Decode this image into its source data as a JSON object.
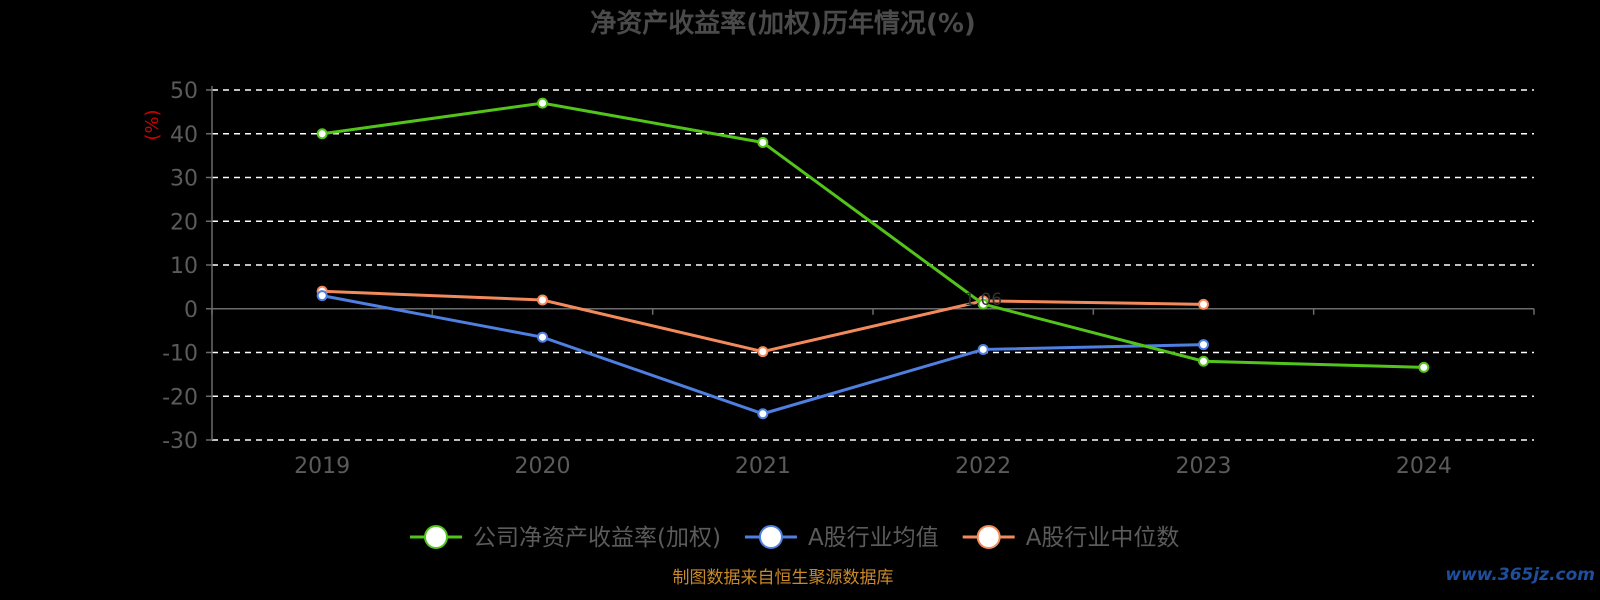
{
  "chart_data": {
    "type": "line",
    "title": "净资产收益率(加权)历年情况(%)",
    "ylabel": "(%)",
    "xlabel": "",
    "categories": [
      "2019",
      "2020",
      "2021",
      "2022",
      "2023",
      "2024"
    ],
    "ylim": [
      -30,
      50
    ],
    "yticks": [
      50,
      40,
      30,
      20,
      10,
      0,
      -10,
      -20,
      -30
    ],
    "grid": true,
    "legend_position": "bottom",
    "series": [
      {
        "name": "公司净资产收益率(加权)",
        "color": "#52c41a",
        "values": [
          40.0,
          47.0,
          38.0,
          1.06,
          -12.0,
          -13.4
        ]
      },
      {
        "name": "A股行业均值",
        "color": "#4f7fe0",
        "values": [
          3.0,
          -6.5,
          -24.0,
          -9.3,
          -8.2,
          null
        ]
      },
      {
        "name": "A股行业中位数",
        "color": "#f28a5b",
        "values": [
          4.0,
          2.0,
          -9.8,
          1.8,
          1.0,
          null
        ]
      }
    ],
    "data_labels": [
      "",
      "",
      "",
      "1.06",
      "",
      ""
    ]
  },
  "footer": {
    "source": "制图数据来自恒生聚源数据库",
    "watermark": "www.365jz.com"
  }
}
